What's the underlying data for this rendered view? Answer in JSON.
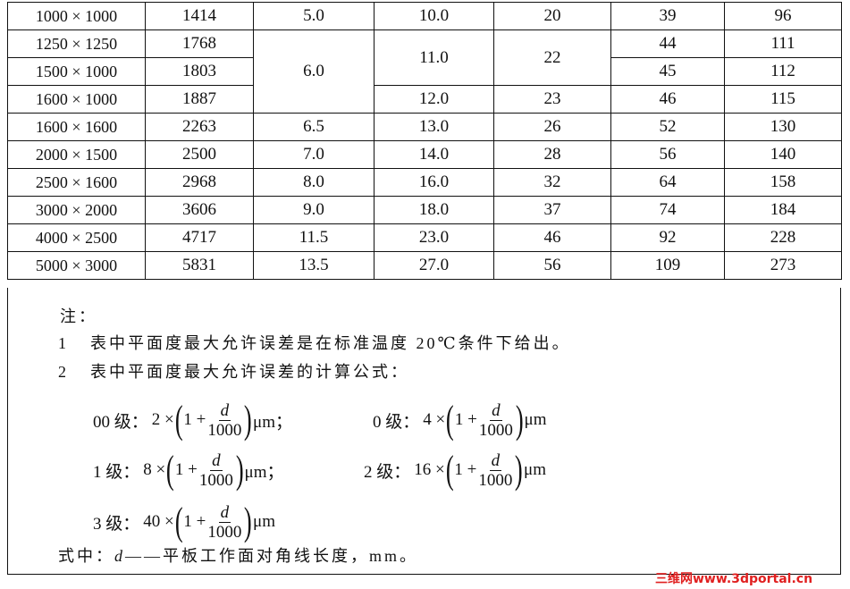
{
  "table": {
    "rows": [
      {
        "size": "1000 × 1000",
        "diag": "1414",
        "g00": "5.0",
        "g0": "10.0",
        "g1": "20",
        "g2": "39",
        "g3": "96"
      },
      {
        "size": "1250 × 1250",
        "diag": "1768",
        "g00": "6.0",
        "g0": "11.0",
        "g1": "22",
        "g2": "44",
        "g3": "111"
      },
      {
        "size": "1500 × 1000",
        "diag": "1803",
        "g2": "45",
        "g3": "112"
      },
      {
        "size": "1600 × 1000",
        "diag": "1887",
        "g0": "12.0",
        "g1": "23",
        "g2": "46",
        "g3": "115"
      },
      {
        "size": "1600 × 1600",
        "diag": "2263",
        "g00": "6.5",
        "g0": "13.0",
        "g1": "26",
        "g2": "52",
        "g3": "130"
      },
      {
        "size": "2000 × 1500",
        "diag": "2500",
        "g00": "7.0",
        "g0": "14.0",
        "g1": "28",
        "g2": "56",
        "g3": "140"
      },
      {
        "size": "2500 × 1600",
        "diag": "2968",
        "g00": "8.0",
        "g0": "16.0",
        "g1": "32",
        "g2": "64",
        "g3": "158"
      },
      {
        "size": "3000 × 2000",
        "diag": "3606",
        "g00": "9.0",
        "g0": "18.0",
        "g1": "37",
        "g2": "74",
        "g3": "184"
      },
      {
        "size": "4000 × 2500",
        "diag": "4717",
        "g00": "11.5",
        "g0": "23.0",
        "g1": "46",
        "g2": "92",
        "g3": "228"
      },
      {
        "size": "5000 × 3000",
        "diag": "5831",
        "g00": "13.5",
        "g0": "27.0",
        "g1": "56",
        "g2": "109",
        "g3": "273"
      }
    ]
  },
  "notes": {
    "heading": "注：",
    "items": [
      {
        "num": "1",
        "text": "表中平面度最大允许误差是在标准温度 20℃条件下给出。"
      },
      {
        "num": "2",
        "text": "表中平面度最大允许误差的计算公式："
      }
    ],
    "formulas": [
      {
        "label": "00 级：",
        "coef": "2 ×",
        "one": "1 +",
        "numer": "d",
        "denom": "1000",
        "unit": "μm；"
      },
      {
        "label": "0 级：",
        "coef": "4 ×",
        "one": "1 +",
        "numer": "d",
        "denom": "1000",
        "unit": "μm"
      },
      {
        "label": "1 级：",
        "coef": "8 ×",
        "one": "1 +",
        "numer": "d",
        "denom": "1000",
        "unit": "μm；"
      },
      {
        "label": "2 级：",
        "coef": "16 ×",
        "one": "1 +",
        "numer": "d",
        "denom": "1000",
        "unit": "μm"
      },
      {
        "label": "3 级：",
        "coef": "40 ×",
        "one": "1 +",
        "numer": "d",
        "denom": "1000",
        "unit": "μm"
      }
    ],
    "where_prefix": "式中：",
    "where_var": "d",
    "where_text": "——平板工作面对角线长度，mm。"
  },
  "watermark": "三维网www.3dportal.cn"
}
